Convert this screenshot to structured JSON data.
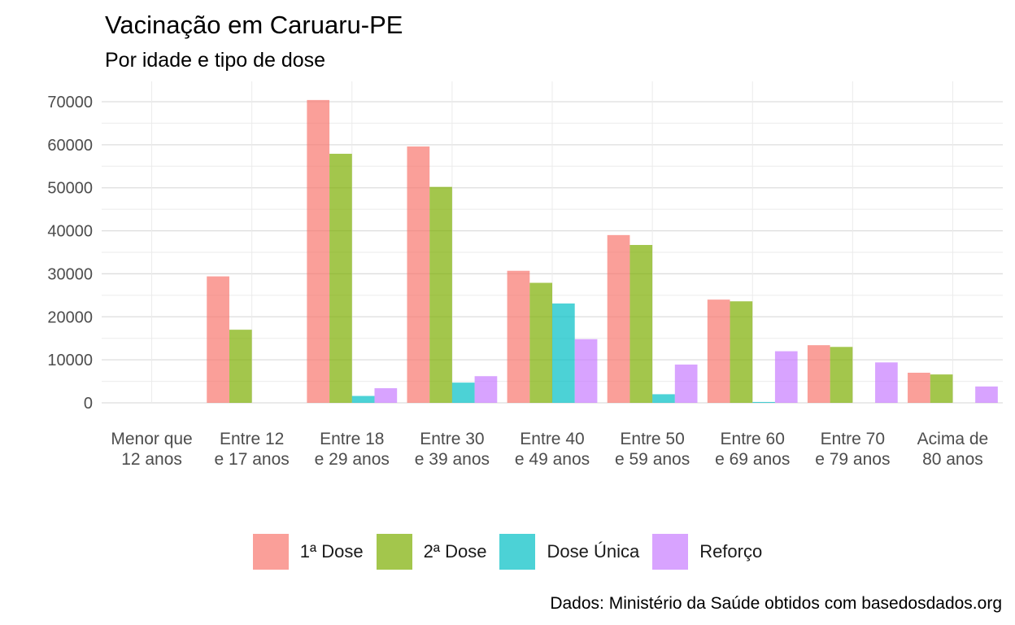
{
  "chart_data": {
    "type": "bar",
    "title": "Vacinação em Caruaru-PE",
    "subtitle": "Por idade e tipo de dose",
    "caption": "Dados: Ministério da Saúde obtidos com basedosdados.org",
    "categories": [
      [
        "Menor que",
        "12 anos"
      ],
      [
        "Entre 12",
        "e 17 anos"
      ],
      [
        "Entre 18",
        "e 29 anos"
      ],
      [
        "Entre 30",
        "e 39 anos"
      ],
      [
        "Entre 40",
        "e 49 anos"
      ],
      [
        "Entre 50",
        "e 59 anos"
      ],
      [
        "Entre 60",
        "e 69 anos"
      ],
      [
        "Entre 70",
        "e 79 anos"
      ],
      [
        "Acima de",
        "80 anos"
      ]
    ],
    "series": [
      {
        "name": "1ª Dose",
        "color": "#F8766D",
        "values": [
          null,
          29400,
          70400,
          59600,
          30700,
          39000,
          24000,
          13400,
          7000
        ]
      },
      {
        "name": "2ª Dose",
        "color": "#7CAE00",
        "values": [
          null,
          17000,
          57900,
          50200,
          27900,
          36700,
          23600,
          13000,
          6600
        ]
      },
      {
        "name": "Dose Única",
        "color": "#00BFC4",
        "values": [
          null,
          null,
          1600,
          4700,
          23100,
          2000,
          200,
          null,
          null
        ]
      },
      {
        "name": "Reforço",
        "color": "#C77CFF",
        "values": [
          null,
          null,
          3400,
          6200,
          14800,
          8900,
          12000,
          9400,
          3800
        ]
      }
    ],
    "yticks": [
      0,
      10000,
      20000,
      30000,
      40000,
      50000,
      60000,
      70000
    ],
    "ylim": [
      0,
      72000
    ],
    "xlabel": "",
    "ylabel": "",
    "grid": true,
    "legend_position": "bottom",
    "bar_opacity": 0.7
  }
}
